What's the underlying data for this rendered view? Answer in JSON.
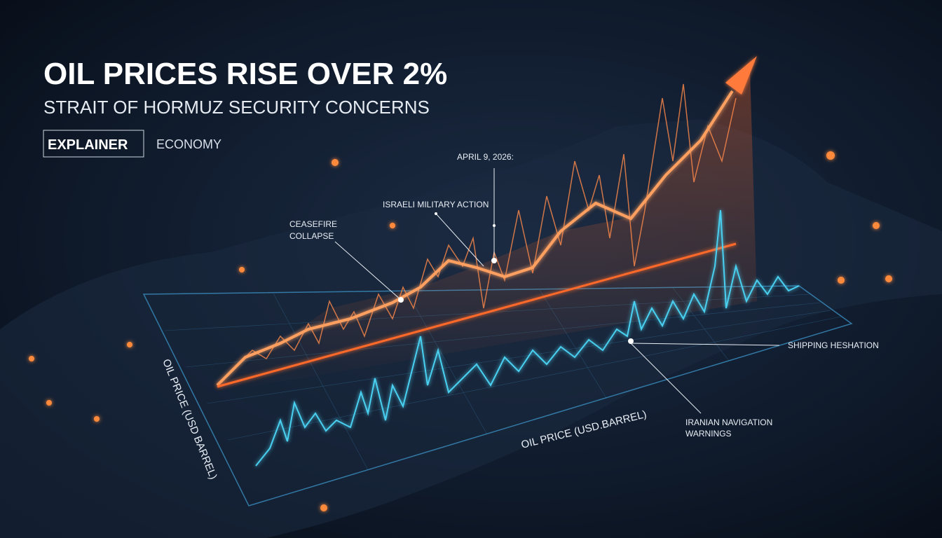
{
  "header": {
    "title": "OIL PRICES RISE OVER 2%",
    "subtitle": "STRAIT OF HORMUZ SECURITY CONCERNS",
    "tags": [
      "EXPLAINER",
      "ECONOMY"
    ]
  },
  "annotations": {
    "date": "APRIL 9, 2026:",
    "israeli": "ISRAELI MILITARY ACTION",
    "ceasefire": [
      "CEASEFIRE",
      "COLLAPSE"
    ],
    "shipping": "SHIPPING HESHATION",
    "iranian": [
      "IRANIAN NAVIGATION",
      "WARNINGS"
    ]
  },
  "axis_labels": {
    "side": "OIL PRICE (USD BARREL)",
    "bottom": "OIL PRICE (USD.BARREL)"
  }
}
